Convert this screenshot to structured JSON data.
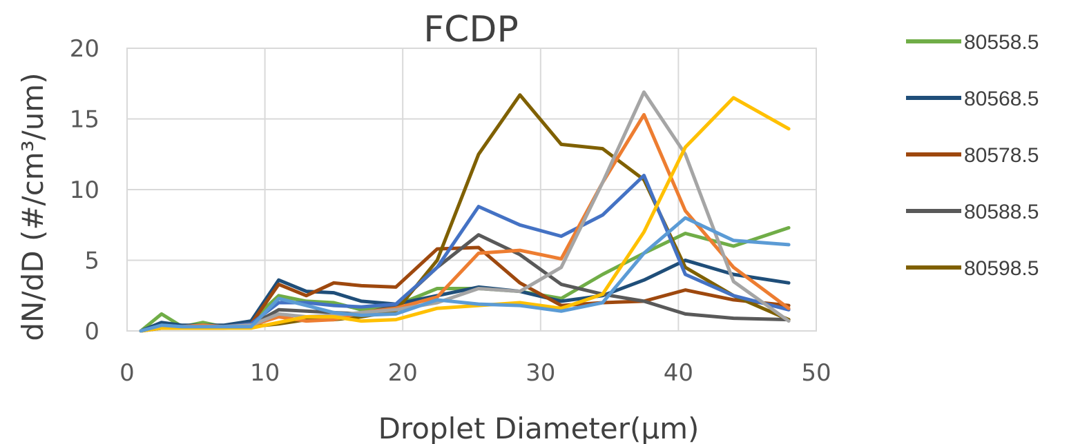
{
  "chart_data": {
    "type": "line",
    "title": "FCDP",
    "xlabel": "Droplet Diameter(μm)",
    "ylabel": "dN/dD (#/cm³/um)",
    "xlim": [
      0,
      50
    ],
    "ylim": [
      0,
      20
    ],
    "xticks": [
      0,
      10,
      20,
      30,
      40,
      50
    ],
    "yticks": [
      0,
      5,
      10,
      15,
      20
    ],
    "grid": true,
    "legend_position": "right",
    "x": [
      1,
      2.5,
      4,
      5.5,
      7,
      9,
      11,
      13,
      15,
      17,
      19.5,
      22.5,
      25.5,
      28.5,
      31.5,
      34.5,
      37.5,
      40.5,
      44,
      48
    ],
    "series": [
      {
        "name": "80558.5",
        "color": "#70ad47",
        "legend": true,
        "values": [
          0,
          1.2,
          0.3,
          0.6,
          0.3,
          0.7,
          2.5,
          2.1,
          2.0,
          1.5,
          1.8,
          3.0,
          3.0,
          2.8,
          2.3,
          4.0,
          5.5,
          6.9,
          6.0,
          7.3
        ]
      },
      {
        "name": "80568.5",
        "color": "#1f4e79",
        "legend": true,
        "values": [
          0,
          0.6,
          0.4,
          0.4,
          0.4,
          0.7,
          3.6,
          2.8,
          2.7,
          2.1,
          1.9,
          2.5,
          3.1,
          2.8,
          2.1,
          2.5,
          3.6,
          5.0,
          4.0,
          3.4
        ]
      },
      {
        "name": "80578.5",
        "color": "#9e480e",
        "legend": true,
        "values": [
          0,
          0.3,
          0.3,
          0.4,
          0.3,
          0.5,
          3.3,
          2.5,
          3.4,
          3.2,
          3.1,
          5.8,
          5.9,
          3.4,
          1.8,
          2.0,
          2.1,
          2.9,
          2.2,
          1.8
        ]
      },
      {
        "name": "80588.5",
        "color": "#595959",
        "legend": true,
        "values": [
          0,
          0.2,
          0.2,
          0.3,
          0.3,
          0.4,
          1.5,
          1.4,
          1.3,
          1.2,
          1.8,
          4.5,
          6.8,
          5.4,
          3.3,
          2.6,
          2.1,
          1.2,
          0.9,
          0.8
        ]
      },
      {
        "name": "80598.5",
        "color": "#7f6000",
        "legend": true,
        "values": [
          0,
          0.2,
          0.2,
          0.2,
          0.2,
          0.3,
          0.5,
          0.8,
          0.8,
          1.0,
          1.4,
          5.0,
          12.5,
          16.7,
          13.2,
          12.9,
          10.7,
          4.5,
          2.5,
          0.8
        ]
      },
      {
        "color": "#4472c4",
        "legend": false,
        "values": [
          0,
          0.4,
          0.3,
          0.4,
          0.3,
          0.5,
          2.0,
          2.0,
          1.8,
          1.7,
          1.9,
          4.5,
          8.8,
          7.5,
          6.7,
          8.2,
          11.0,
          4.0,
          2.5,
          1.5
        ]
      },
      {
        "color": "#ed7d31",
        "legend": false,
        "values": [
          0,
          0.3,
          0.3,
          0.4,
          0.3,
          0.4,
          1.0,
          0.7,
          0.8,
          1.3,
          1.6,
          2.4,
          5.5,
          5.7,
          5.1,
          10.5,
          15.3,
          8.5,
          4.5,
          1.6
        ]
      },
      {
        "color": "#a5a5a5",
        "legend": false,
        "values": [
          0,
          0.3,
          0.2,
          0.3,
          0.3,
          0.4,
          1.2,
          1.0,
          1.1,
          1.3,
          1.5,
          2.0,
          3.0,
          2.8,
          4.5,
          10.5,
          16.9,
          12.5,
          3.5,
          0.7
        ]
      },
      {
        "color": "#ffc000",
        "legend": false,
        "values": [
          0,
          0.2,
          0.2,
          0.2,
          0.2,
          0.2,
          0.6,
          1.0,
          1.0,
          0.7,
          0.8,
          1.6,
          1.8,
          2.0,
          1.6,
          2.6,
          7.0,
          13.0,
          16.5,
          14.3
        ]
      },
      {
        "color": "#5b9bd5",
        "legend": false,
        "values": [
          0,
          0.4,
          0.3,
          0.3,
          0.3,
          0.3,
          2.3,
          1.8,
          1.3,
          1.1,
          1.2,
          2.2,
          1.9,
          1.8,
          1.4,
          2.0,
          5.5,
          8.0,
          6.4,
          6.1
        ]
      }
    ]
  }
}
